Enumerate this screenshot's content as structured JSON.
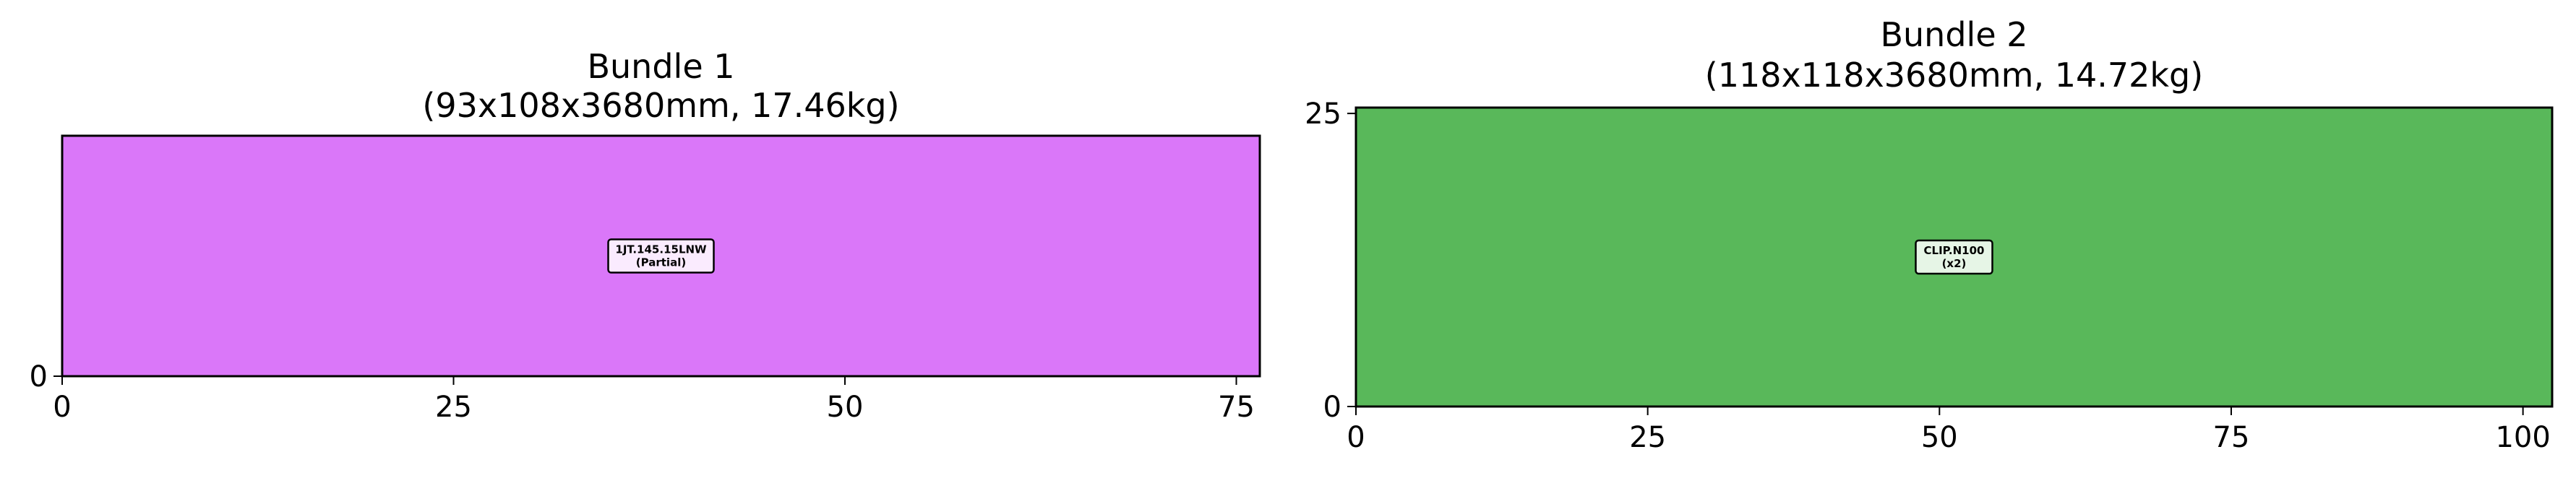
{
  "chart_data": [
    {
      "type": "bar",
      "title": "Bundle 1",
      "subtitle": "(93x108x3680mm, 17.46kg)",
      "xlabel": "",
      "ylabel": "",
      "xlim": [
        0,
        76.5
      ],
      "ylim": [
        0,
        15.5
      ],
      "xticks": [
        0,
        25,
        50,
        75
      ],
      "yticks": [
        0
      ],
      "grid": false,
      "rects": [
        {
          "x0": 0,
          "x1": 76.5,
          "y0": 0,
          "y1": 15.5,
          "color": "#da77f9",
          "label_lines": [
            "1JT.145.15LNW",
            "(Partial)"
          ],
          "label_x": 38.25,
          "label_y": 7.75
        }
      ]
    },
    {
      "type": "bar",
      "title": "Bundle 2",
      "subtitle": "(118x118x3680mm, 14.72kg)",
      "xlabel": "",
      "ylabel": "",
      "xlim": [
        0,
        102.5
      ],
      "ylim": [
        0,
        25.5
      ],
      "xticks": [
        0,
        25,
        50,
        75,
        100
      ],
      "yticks": [
        0,
        25
      ],
      "grid": false,
      "rects": [
        {
          "x0": 0,
          "x1": 102.5,
          "y0": 0,
          "y1": 25.5,
          "color": "#59b85a",
          "label_lines": [
            "CLIP.N100",
            "(x2)"
          ],
          "label_x": 51.25,
          "label_y": 12.75
        }
      ]
    }
  ]
}
